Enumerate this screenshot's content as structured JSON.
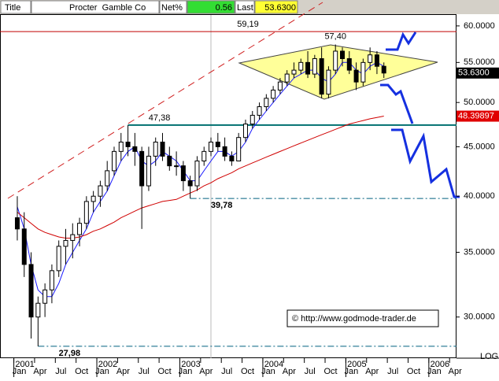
{
  "header": {
    "title_label": "Title",
    "name": "Procter  Gamble Co",
    "net_label": "Net%",
    "net_value": 0.56,
    "last_label": "Last",
    "last_value": {
      "value": 53.63,
      "label": "53.6300"
    }
  },
  "chart_data": {
    "type": "candlestick",
    "log_scale": true,
    "x": [
      "2001-01",
      "2001-02",
      "2001-03",
      "2001-04",
      "2001-05",
      "2001-06",
      "2001-07",
      "2001-08",
      "2001-09",
      "2001-10",
      "2001-11",
      "2001-12",
      "2002-01",
      "2002-02",
      "2002-03",
      "2002-04",
      "2002-05",
      "2002-06",
      "2002-07",
      "2002-08",
      "2002-09",
      "2002-10",
      "2002-11",
      "2002-12",
      "2003-01",
      "2003-02",
      "2003-03",
      "2003-04",
      "2003-05",
      "2003-06",
      "2003-07",
      "2003-08",
      "2003-09",
      "2003-10",
      "2003-11",
      "2003-12",
      "2004-01",
      "2004-02",
      "2004-03",
      "2004-04",
      "2004-05",
      "2004-06",
      "2004-07",
      "2004-08",
      "2004-09",
      "2004-10",
      "2004-11",
      "2004-12",
      "2005-01",
      "2005-02",
      "2005-03",
      "2005-04",
      "2005-05",
      "2005-06"
    ],
    "open": [
      38,
      37,
      34,
      30,
      31,
      32,
      33.5,
      35.5,
      36,
      36.5,
      37.5,
      39.5,
      40,
      41,
      42.5,
      44.5,
      45.5,
      45,
      44.5,
      41,
      44,
      45.5,
      44,
      43,
      43,
      41.5,
      41,
      43.5,
      44.5,
      45.5,
      45,
      44,
      43.5,
      46,
      47.5,
      48.5,
      49.5,
      50.5,
      51.5,
      52.5,
      53.5,
      54,
      55,
      53.5,
      55.5,
      51,
      54,
      56.5,
      55.5,
      54,
      52.5,
      55,
      56,
      54.5
    ],
    "high": [
      40,
      38.5,
      35,
      31.5,
      32.5,
      34,
      36,
      37,
      37.5,
      38,
      40,
      40.5,
      41.5,
      43.5,
      45,
      46.5,
      47.38,
      46.5,
      45,
      45,
      46,
      46.5,
      45,
      44.5,
      43.5,
      42,
      44,
      45,
      46,
      46.5,
      46,
      44.5,
      46.5,
      48,
      49,
      50,
      51,
      52,
      53,
      54,
      55,
      55.5,
      56.5,
      56,
      57,
      54.5,
      57.4,
      57,
      56.5,
      55,
      55.5,
      57,
      56.5,
      55
    ],
    "low": [
      36,
      33,
      28.5,
      27.98,
      30,
      31,
      33,
      34,
      34.5,
      35.5,
      37,
      38.5,
      39,
      40.5,
      42,
      43.5,
      44,
      43,
      37,
      40.5,
      43,
      43.5,
      42.5,
      42,
      40.5,
      39.78,
      40.5,
      43,
      44,
      44.5,
      43.5,
      43,
      43.5,
      45.5,
      47,
      48,
      49,
      50,
      51,
      52,
      53,
      53.5,
      53,
      53,
      50.5,
      50.5,
      53.5,
      54.5,
      53.5,
      51.5,
      52,
      54,
      53.5,
      53
    ],
    "close": [
      37,
      34,
      30,
      31,
      32,
      33.5,
      35.5,
      36,
      36.5,
      37.5,
      39.5,
      40,
      41,
      42.5,
      44.5,
      45.5,
      45,
      44.5,
      41,
      44,
      45.5,
      44,
      43,
      43,
      41.5,
      41,
      43.5,
      44.5,
      45.5,
      45,
      44,
      43.5,
      46,
      47.5,
      48.5,
      49.5,
      50.5,
      51.5,
      52.5,
      53.5,
      54,
      55,
      53.5,
      55.5,
      51,
      54,
      56.5,
      55.5,
      54,
      52.5,
      55,
      56,
      54.5,
      53.63
    ],
    "series": [
      {
        "color": "#1a1aff",
        "values": [
          39,
          37,
          34,
          32,
          31.5,
          31.5,
          32.5,
          34,
          35,
          36,
          37,
          38.5,
          39.5,
          40.5,
          42,
          43.5,
          44.5,
          45,
          43.5,
          43,
          43.5,
          44.5,
          44,
          43.5,
          42.5,
          41.5,
          41.5,
          42.5,
          43.5,
          44.5,
          44.5,
          44,
          44.5,
          45.5,
          47,
          48,
          49,
          50,
          51,
          52,
          53,
          53.5,
          54,
          54,
          53,
          52.5,
          53.5,
          55,
          55,
          54,
          53.5,
          54.5,
          55,
          54.5
        ]
      },
      {
        "color": "#d00000",
        "values": [
          38.5,
          38,
          37.5,
          37,
          36.7,
          36.5,
          36.3,
          36.2,
          36.2,
          36.3,
          36.5,
          36.8,
          37,
          37.3,
          37.6,
          38,
          38.3,
          38.6,
          38.9,
          39.1,
          39.3,
          39.5,
          39.6,
          39.7,
          40,
          40.3,
          40.6,
          41,
          41.3,
          41.7,
          42,
          42.3,
          42.7,
          43,
          43.3,
          43.6,
          43.9,
          44.2,
          44.5,
          44.8,
          45.1,
          45.4,
          45.7,
          46,
          46.3,
          46.6,
          46.9,
          47.2,
          47.5,
          47.7,
          47.9,
          48.1,
          48.25,
          48.4
        ]
      }
    ],
    "levels": [
      {
        "value": 59.19,
        "label": "59,19",
        "color": "#c00000"
      },
      {
        "value": 47.38,
        "label": "47,38",
        "color": "#007070"
      },
      {
        "value": 39.78,
        "label": "39,78",
        "color": "#006080"
      },
      {
        "value": 27.98,
        "label": "27,98",
        "color": "#006080"
      }
    ],
    "peak_label": {
      "value": 57.4,
      "label": "57,40"
    },
    "badges": [
      {
        "value": 53.63,
        "label": "53.6300",
        "color": "#000000"
      },
      {
        "value": 48.39897,
        "label": "48.39897",
        "color": "#e00000"
      }
    ],
    "xlim": [
      "2000-11",
      "2006-05"
    ],
    "ylim": [
      27.2,
      61.7
    ],
    "yticks": [
      {
        "value": 30,
        "label": "30.0000"
      },
      {
        "value": 35,
        "label": "35.0000"
      },
      {
        "value": 40,
        "label": "40.0000"
      },
      {
        "value": 45,
        "label": "45.0000"
      },
      {
        "value": 50,
        "label": "50.0000"
      },
      {
        "value": 55,
        "label": "55.0000"
      },
      {
        "value": 60,
        "label": "60.0000"
      }
    ],
    "xticks": [
      {
        "value": "2001-01",
        "label": "Jan"
      },
      {
        "value": "2001-04",
        "label": "Apr"
      },
      {
        "value": "2001-07",
        "label": "Jul"
      },
      {
        "value": "2001-10",
        "label": "Oct"
      },
      {
        "value": "2002-01",
        "label": "Jan"
      },
      {
        "value": "2002-04",
        "label": "Apr"
      },
      {
        "value": "2002-07",
        "label": "Jul"
      },
      {
        "value": "2002-10",
        "label": "Oct"
      },
      {
        "value": "2003-01",
        "label": "Jan"
      },
      {
        "value": "2003-04",
        "label": "Apr"
      },
      {
        "value": "2003-07",
        "label": "Jul"
      },
      {
        "value": "2003-10",
        "label": "Oct"
      },
      {
        "value": "2004-01",
        "label": "Jan"
      },
      {
        "value": "2004-04",
        "label": "Apr"
      },
      {
        "value": "2004-07",
        "label": "Jul"
      },
      {
        "value": "2004-10",
        "label": "Oct"
      },
      {
        "value": "2005-01",
        "label": "Jan"
      },
      {
        "value": "2005-04",
        "label": "Apr"
      },
      {
        "value": "2005-07",
        "label": "Jul"
      },
      {
        "value": "2005-10",
        "label": "Oct"
      },
      {
        "value": "2006-01",
        "label": "Jan"
      },
      {
        "value": "2006-04",
        "label": "Apr"
      }
    ],
    "year_labels": [
      {
        "value": "2001-01",
        "label": "2001"
      },
      {
        "value": "2002-01",
        "label": "2002"
      },
      {
        "value": "2003-01",
        "label": "2003"
      },
      {
        "value": "2004-01",
        "label": "2004"
      },
      {
        "value": "2005-01",
        "label": "2005"
      },
      {
        "value": "2006-01",
        "label": "2006"
      }
    ],
    "watermark": "© http://www.godmode-trader.de",
    "scale_label": "LOG"
  }
}
